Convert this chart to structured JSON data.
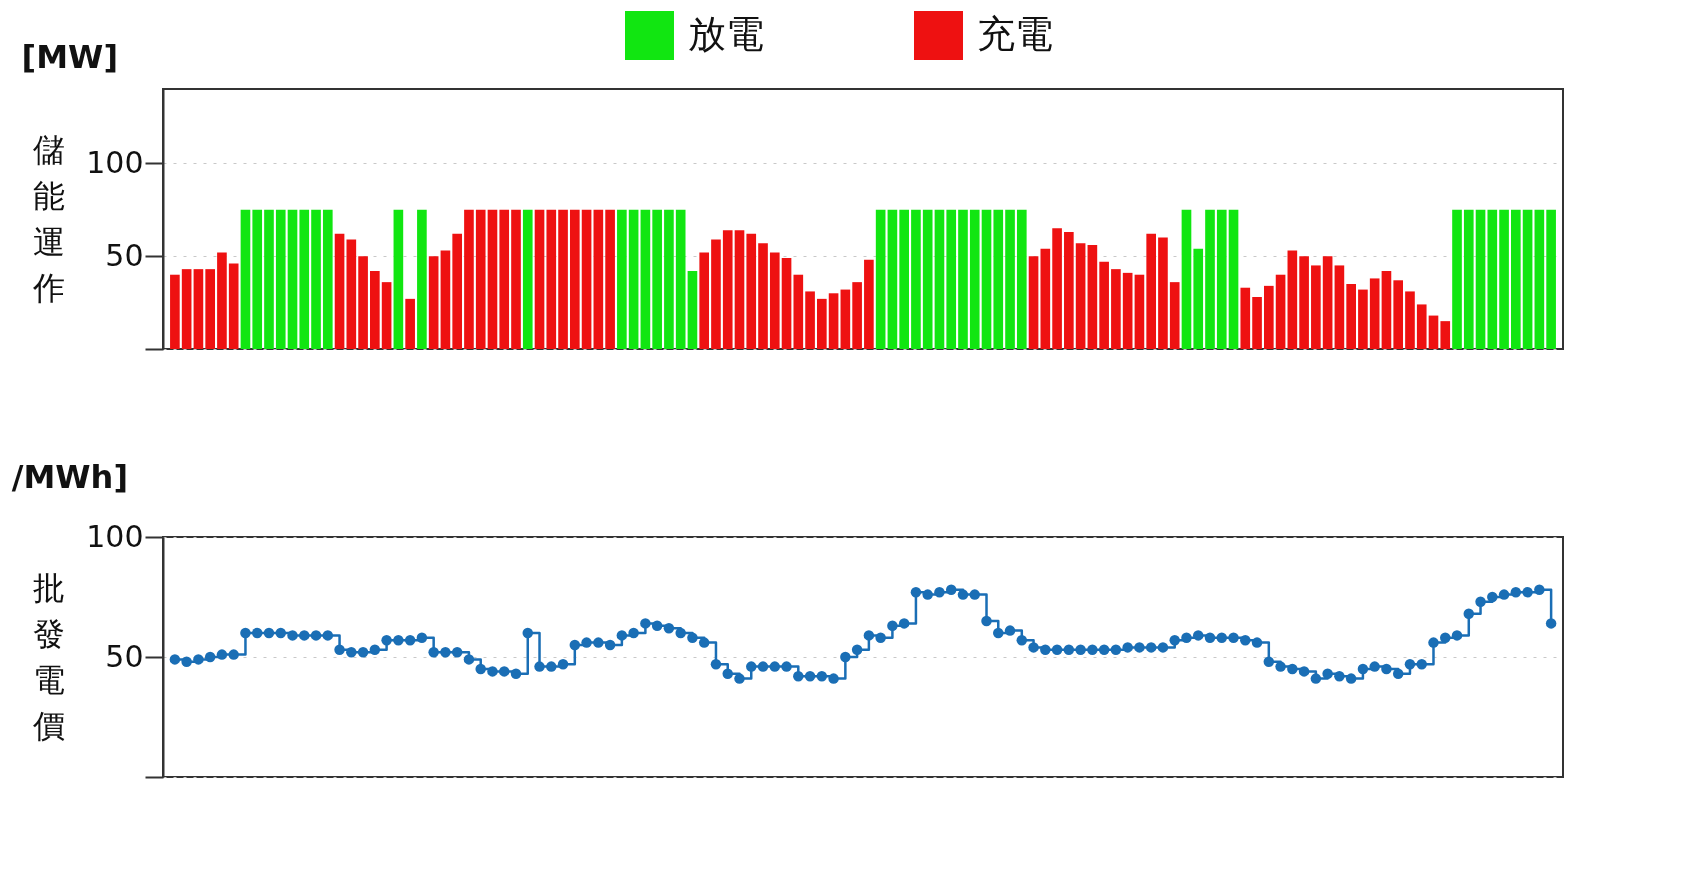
{
  "chart_data": [
    {
      "type": "bar",
      "ylabel": "儲能運作",
      "annotations": [
        "[MW]"
      ],
      "legend": "top",
      "grid": "y",
      "tick_labels": "y",
      "categories": [
        null,
        null,
        null,
        null,
        null,
        null,
        null,
        null,
        null,
        null,
        null,
        null,
        null,
        null,
        null,
        null,
        null,
        null,
        null,
        null,
        null,
        null,
        null,
        null,
        null,
        null,
        null,
        null,
        null,
        null,
        null,
        null,
        null,
        null,
        null,
        null,
        null,
        null,
        null,
        null,
        null,
        null,
        null,
        null,
        null,
        null,
        null,
        null,
        null,
        null,
        null,
        null,
        null,
        null,
        null,
        null,
        null,
        null,
        null,
        null,
        null,
        null,
        null,
        null,
        null,
        null,
        null,
        null,
        null,
        null,
        null,
        null,
        null,
        null,
        null,
        null,
        null,
        null,
        null,
        null,
        null,
        null,
        null,
        null,
        null,
        null,
        null,
        null,
        null,
        null,
        null,
        null,
        null,
        null,
        null,
        null,
        null,
        null,
        null,
        null,
        null,
        null,
        null,
        null,
        null,
        null,
        null,
        null,
        null,
        null,
        null,
        null,
        null,
        null,
        null,
        null,
        null,
        null
      ],
      "ylim": [
        0,
        140
      ],
      "yticks": [
        {
          "value": 0,
          "label": null
        },
        50,
        100
      ],
      "series": [
        {
          "name": "放電",
          "color": "#11e611",
          "values": [
            null,
            null,
            null,
            null,
            null,
            null,
            75,
            75,
            75,
            75,
            75,
            75,
            75,
            75,
            null,
            null,
            null,
            null,
            null,
            75,
            null,
            75,
            null,
            null,
            null,
            null,
            null,
            null,
            null,
            null,
            75,
            null,
            null,
            null,
            null,
            null,
            null,
            null,
            75,
            75,
            75,
            75,
            75,
            75,
            42,
            null,
            null,
            null,
            null,
            null,
            null,
            null,
            null,
            null,
            null,
            null,
            null,
            null,
            null,
            null,
            75,
            75,
            75,
            75,
            75,
            75,
            75,
            75,
            75,
            75,
            75,
            75,
            75,
            null,
            null,
            null,
            null,
            null,
            null,
            null,
            null,
            null,
            null,
            null,
            null,
            null,
            75,
            54,
            75,
            75,
            75,
            null,
            null,
            null,
            null,
            null,
            null,
            null,
            null,
            null,
            null,
            null,
            null,
            null,
            null,
            null,
            null,
            null,
            null,
            75,
            75,
            75,
            75,
            75,
            75,
            75,
            75,
            75
          ]
        },
        {
          "name": "充電",
          "color": "#ee1111",
          "values": [
            40,
            43,
            43,
            43,
            52,
            46,
            null,
            null,
            null,
            null,
            null,
            null,
            null,
            null,
            62,
            59,
            50,
            42,
            36,
            null,
            27,
            null,
            50,
            53,
            62,
            75,
            75,
            75,
            75,
            75,
            null,
            75,
            75,
            75,
            75,
            75,
            75,
            75,
            null,
            null,
            null,
            null,
            null,
            null,
            null,
            52,
            59,
            64,
            64,
            62,
            57,
            52,
            49,
            40,
            31,
            27,
            30,
            32,
            36,
            48,
            null,
            null,
            null,
            null,
            null,
            null,
            null,
            null,
            null,
            null,
            null,
            null,
            null,
            50,
            54,
            65,
            63,
            57,
            56,
            47,
            43,
            41,
            40,
            62,
            60,
            36,
            null,
            null,
            null,
            null,
            null,
            33,
            28,
            34,
            40,
            53,
            50,
            45,
            50,
            45,
            35,
            32,
            38,
            42,
            37,
            31,
            24,
            18,
            15,
            null,
            null,
            null,
            null,
            null,
            null,
            null,
            null,
            null
          ]
        }
      ]
    },
    {
      "type": "step",
      "ylabel": "批發電價",
      "annotations": [
        "/MWh]"
      ],
      "grid": "y",
      "tick_labels": "y",
      "marker": "circle",
      "categories": [
        null,
        null,
        null,
        null,
        null,
        null,
        null,
        null,
        null,
        null,
        null,
        null,
        null,
        null,
        null,
        null,
        null,
        null,
        null,
        null,
        null,
        null,
        null,
        null,
        null,
        null,
        null,
        null,
        null,
        null,
        null,
        null,
        null,
        null,
        null,
        null,
        null,
        null,
        null,
        null,
        null,
        null,
        null,
        null,
        null,
        null,
        null,
        null,
        null,
        null,
        null,
        null,
        null,
        null,
        null,
        null,
        null,
        null,
        null,
        null,
        null,
        null,
        null,
        null,
        null,
        null,
        null,
        null,
        null,
        null,
        null,
        null,
        null,
        null,
        null,
        null,
        null,
        null,
        null,
        null,
        null,
        null,
        null,
        null,
        null,
        null,
        null,
        null,
        null,
        null,
        null,
        null,
        null,
        null,
        null,
        null,
        null,
        null,
        null,
        null,
        null,
        null,
        null,
        null,
        null,
        null,
        null,
        null,
        null,
        null,
        null,
        null,
        null,
        null,
        null,
        null,
        null,
        null
      ],
      "ylim": [
        0,
        100
      ],
      "yticks": [
        {
          "value": 0,
          "label": null
        },
        50,
        100
      ],
      "series": [
        {
          "color": "#1a6eb5",
          "values": [
            49,
            48,
            49,
            50,
            51,
            51,
            60,
            60,
            60,
            60,
            59,
            59,
            59,
            59,
            53,
            52,
            52,
            53,
            57,
            57,
            57,
            58,
            52,
            52,
            52,
            49,
            45,
            44,
            44,
            43,
            60,
            46,
            46,
            47,
            55,
            56,
            56,
            55,
            59,
            60,
            64,
            63,
            62,
            60,
            58,
            56,
            47,
            43,
            41,
            46,
            46,
            46,
            46,
            42,
            42,
            42,
            41,
            50,
            53,
            59,
            58,
            63,
            64,
            77,
            76,
            77,
            78,
            76,
            76,
            65,
            60,
            61,
            57,
            54,
            53,
            53,
            53,
            53,
            53,
            53,
            53,
            54,
            54,
            54,
            54,
            57,
            58,
            59,
            58,
            58,
            58,
            57,
            56,
            48,
            46,
            45,
            44,
            41,
            43,
            42,
            41,
            45,
            46,
            45,
            43,
            47,
            47,
            56,
            58,
            59,
            68,
            73,
            75,
            76,
            77,
            77,
            78,
            64
          ]
        }
      ]
    }
  ]
}
